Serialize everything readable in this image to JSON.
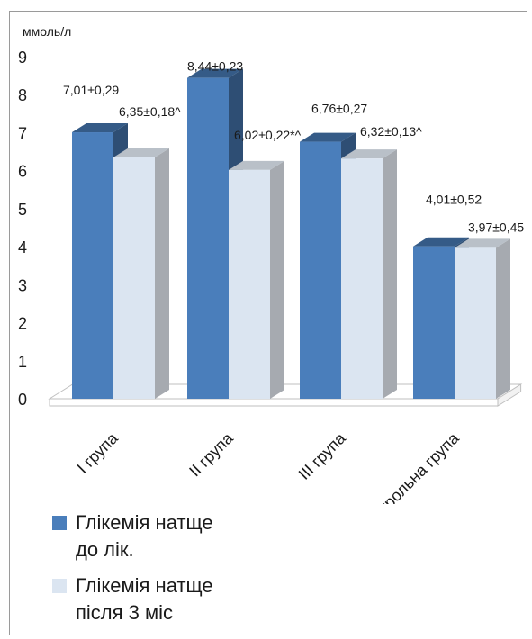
{
  "chart_data": {
    "type": "bar",
    "title": "",
    "ylabel": "ммоль/л",
    "xlabel": "",
    "ylim": [
      0,
      9
    ],
    "yticks": [
      "0",
      "1",
      "2",
      "3",
      "4",
      "5",
      "6",
      "7",
      "8",
      "9"
    ],
    "categories": [
      "I група",
      "II група",
      "III група",
      "Контрольна група"
    ],
    "series": [
      {
        "name": "Глікемія натще до лік.",
        "color": "#4a7ebb",
        "values": [
          7.01,
          8.44,
          6.76,
          4.01
        ],
        "labels": [
          "7,01±0,29",
          "8,44±0,23",
          "6,76±0,27",
          "4,01±0,52"
        ]
      },
      {
        "name": "Глікемія натще після 3 міс",
        "color": "#dbe5f1",
        "values": [
          6.35,
          6.02,
          6.32,
          3.97
        ],
        "labels": [
          "6,35±0,18^",
          "6,02±0,22*^",
          "6,32±0,13^",
          "3,97±0,45"
        ]
      }
    ],
    "legend": {
      "position": "bottom-left",
      "lines": [
        [
          "Глікемія натще",
          "до лік."
        ],
        [
          "Глікемія натще",
          "після 3 міс"
        ]
      ]
    },
    "grid": false
  }
}
